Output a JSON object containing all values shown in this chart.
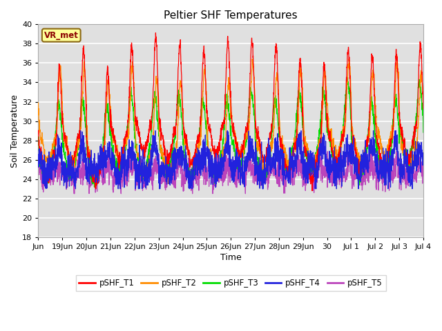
{
  "title": "Peltier SHF Temperatures",
  "xlabel": "Time",
  "ylabel": "Soil Temperature",
  "ylim": [
    18,
    40
  ],
  "background_color": "#ffffff",
  "plot_bg_color": "#e0e0e0",
  "grid_color": "#ffffff",
  "annotation_text": "VR_met",
  "annotation_bg": "#ffff99",
  "annotation_border": "#8B6914",
  "annotation_text_color": "#8B0000",
  "colors": {
    "pSHF_T1": "#ff0000",
    "pSHF_T2": "#ff8c00",
    "pSHF_T3": "#00dd00",
    "pSHF_T4": "#2222dd",
    "pSHF_T5": "#bb44bb"
  },
  "legend_labels": [
    "pSHF_T1",
    "pSHF_T2",
    "pSHF_T3",
    "pSHF_T4",
    "pSHF_T5"
  ],
  "tick_labels": [
    "Jun",
    "19Jun",
    "20Jun",
    "21Jun",
    "22Jun",
    "23Jun",
    "24Jun",
    "25Jun",
    "26Jun",
    "27Jun",
    "28Jun",
    "29Jun",
    "30",
    "Jul 1",
    "Jul 2",
    "Jul 3",
    "Jul 4"
  ],
  "tick_positions": [
    0,
    1,
    2,
    3,
    4,
    5,
    6,
    7,
    8,
    9,
    10,
    11,
    12,
    13,
    14,
    15,
    16
  ],
  "yticks": [
    18,
    20,
    22,
    24,
    26,
    28,
    30,
    32,
    34,
    36,
    38,
    40
  ],
  "num_days": 16,
  "pts_per_day": 144
}
